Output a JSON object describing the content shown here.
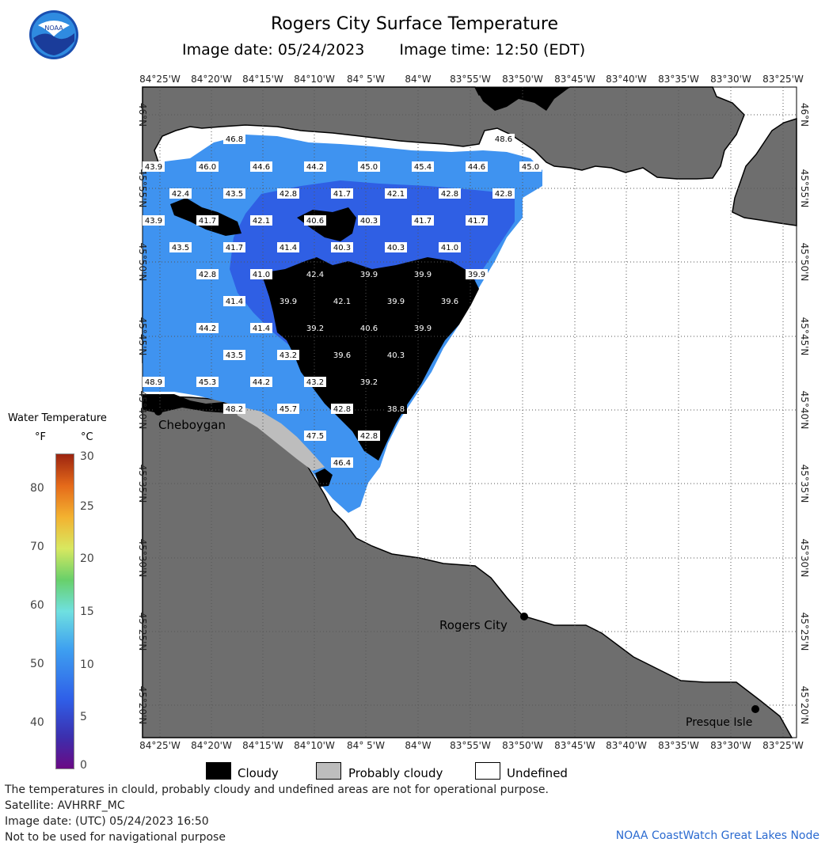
{
  "title": "Rogers City Surface Temperature",
  "image_date": "Image date: 05/24/2023",
  "image_time": "Image time: 12:50 (EDT)",
  "lon_labels": [
    "84°25'W",
    "84°20'W",
    "84°15'W",
    "84°10'W",
    "84° 5'W",
    "84°W",
    "83°55'W",
    "83°50'W",
    "83°45'W",
    "83°40'W",
    "83°35'W",
    "83°30'W",
    "83°25'W"
  ],
  "lat_labels": [
    "46°N",
    "45°55'N",
    "45°50'N",
    "45°45'N",
    "45°40'N",
    "45°35'N",
    "45°30'N",
    "45°25'N",
    "45°20'N"
  ],
  "places": {
    "cheboygan": "Cheboygan",
    "rogers_city": "Rogers City",
    "presque_isle": "Presque Isle"
  },
  "temps": [
    {
      "v": "46.8",
      "c": "blue"
    },
    {
      "v": "48.6",
      "c": "blue"
    },
    {
      "v": "43.9",
      "c": "blue"
    },
    {
      "v": "46.0",
      "c": "blue"
    },
    {
      "v": "44.6",
      "c": "blue"
    },
    {
      "v": "44.2",
      "c": "blue"
    },
    {
      "v": "45.0",
      "c": "blue"
    },
    {
      "v": "45.4",
      "c": "blue"
    },
    {
      "v": "44.6",
      "c": "blue"
    },
    {
      "v": "45.0",
      "c": "blue"
    },
    {
      "v": "42.4",
      "c": "blue"
    },
    {
      "v": "43.5",
      "c": "blue"
    },
    {
      "v": "42.8",
      "c": "blue"
    },
    {
      "v": "41.7",
      "c": "blue"
    },
    {
      "v": "42.1",
      "c": "blue"
    },
    {
      "v": "42.8",
      "c": "blue"
    },
    {
      "v": "42.8",
      "c": "blue"
    },
    {
      "v": "43.9",
      "c": "blue"
    },
    {
      "v": "41.7",
      "c": "blue"
    },
    {
      "v": "42.1",
      "c": "blue"
    },
    {
      "v": "40.6",
      "c": "blue"
    },
    {
      "v": "40.3",
      "c": "blue"
    },
    {
      "v": "41.7",
      "c": "blue"
    },
    {
      "v": "41.7",
      "c": "blue"
    },
    {
      "v": "43.5",
      "c": "blue"
    },
    {
      "v": "41.7",
      "c": "blue"
    },
    {
      "v": "41.4",
      "c": "blue"
    },
    {
      "v": "40.3",
      "c": "blue"
    },
    {
      "v": "40.3",
      "c": "blue"
    },
    {
      "v": "41.0",
      "c": "blue"
    },
    {
      "v": "42.8",
      "c": "blue"
    },
    {
      "v": "41.0",
      "c": "blue"
    },
    {
      "v": "42.4",
      "c": "black"
    },
    {
      "v": "39.9",
      "c": "black"
    },
    {
      "v": "39.9",
      "c": "black"
    },
    {
      "v": "39.9",
      "c": "blue"
    },
    {
      "v": "41.4",
      "c": "blue"
    },
    {
      "v": "39.9",
      "c": "black"
    },
    {
      "v": "42.1",
      "c": "black"
    },
    {
      "v": "39.9",
      "c": "black"
    },
    {
      "v": "39.6",
      "c": "black"
    },
    {
      "v": "44.2",
      "c": "blue"
    },
    {
      "v": "41.4",
      "c": "blue"
    },
    {
      "v": "39.2",
      "c": "black"
    },
    {
      "v": "40.6",
      "c": "black"
    },
    {
      "v": "39.9",
      "c": "black"
    },
    {
      "v": "43.5",
      "c": "blue"
    },
    {
      "v": "43.2",
      "c": "blue"
    },
    {
      "v": "39.6",
      "c": "black"
    },
    {
      "v": "40.3",
      "c": "black"
    },
    {
      "v": "48.9",
      "c": "blue"
    },
    {
      "v": "45.3",
      "c": "blue"
    },
    {
      "v": "44.2",
      "c": "blue"
    },
    {
      "v": "43.2",
      "c": "blue"
    },
    {
      "v": "39.2",
      "c": "black"
    },
    {
      "v": "48.2",
      "c": "blue"
    },
    {
      "v": "45.7",
      "c": "blue"
    },
    {
      "v": "42.8",
      "c": "blue"
    },
    {
      "v": "38.8",
      "c": "black"
    },
    {
      "v": "47.5",
      "c": "blue"
    },
    {
      "v": "42.8",
      "c": "blue"
    },
    {
      "v": "46.4",
      "c": "blue"
    }
  ],
  "legend": {
    "title": "Water Temperature",
    "unit_f": "°F",
    "unit_c": "°C",
    "f_ticks": [
      "80",
      "70",
      "60",
      "50",
      "40"
    ],
    "c_ticks": [
      "30",
      "25",
      "20",
      "15",
      "10",
      "5",
      "0"
    ]
  },
  "key": {
    "cloudy": "Cloudy",
    "probably_cloudy": "Probably cloudy",
    "undefined": "Undefined"
  },
  "footer": {
    "line1": "The temperatures in clould, probably cloudy and undefined areas are not for operational purpose.",
    "line2": "Satellite: AVHRRF_MC",
    "line3": "Image date: (UTC) 05/24/2023  16:50",
    "line4": "Not to be used for navigational purpose",
    "credit": "NOAA CoastWatch Great Lakes Node"
  },
  "colors": {
    "land": "#6e6e6e",
    "cloud": "#000000",
    "prob_cloud": "#bdbdbd",
    "undefined": "#ffffff",
    "water_warm": "#3f93f0",
    "water_cold": "#2d4fd8",
    "grid": "#555555"
  }
}
